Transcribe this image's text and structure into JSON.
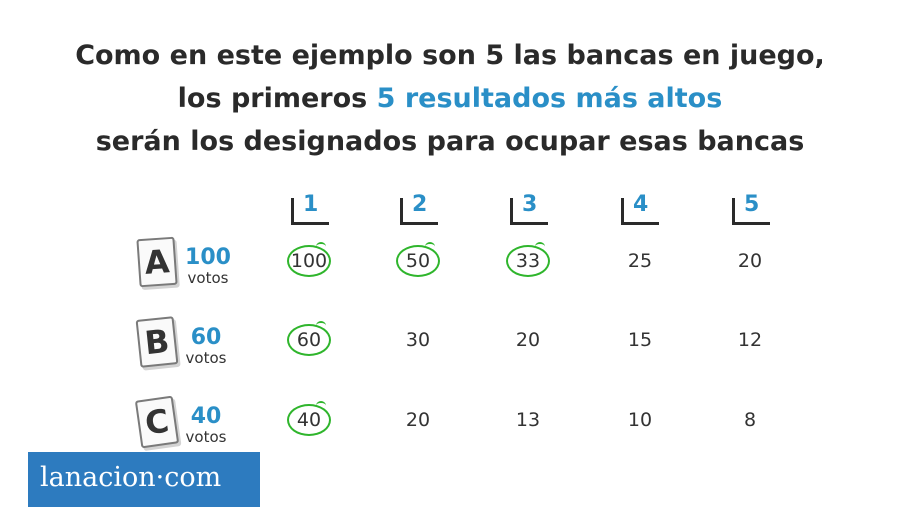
{
  "headline": {
    "line1": "Como en este ejemplo son 5 las bancas en juego,",
    "line2_before": "los primeros ",
    "line2_highlight": "5 resultados más altos",
    "line3": "serán los designados para ocupar esas bancas"
  },
  "divisors": [
    "1",
    "2",
    "3",
    "4",
    "5"
  ],
  "votes_unit": "votos",
  "parties": [
    {
      "letter": "A",
      "votes": "100",
      "results": [
        "100",
        "50",
        "33",
        "25",
        "20"
      ],
      "circled": [
        true,
        true,
        true,
        false,
        false
      ]
    },
    {
      "letter": "B",
      "votes": "60",
      "results": [
        "60",
        "30",
        "20",
        "15",
        "12"
      ],
      "circled": [
        true,
        false,
        false,
        false,
        false
      ]
    },
    {
      "letter": "C",
      "votes": "40",
      "results": [
        "40",
        "20",
        "13",
        "10",
        "8"
      ],
      "circled": [
        true,
        false,
        false,
        false,
        false
      ]
    }
  ],
  "logo": {
    "text": "lanacion·com"
  },
  "colors": {
    "accent": "#2a8fc7",
    "circle": "#2fb52c",
    "logo_bg": "#2d7bbf"
  }
}
